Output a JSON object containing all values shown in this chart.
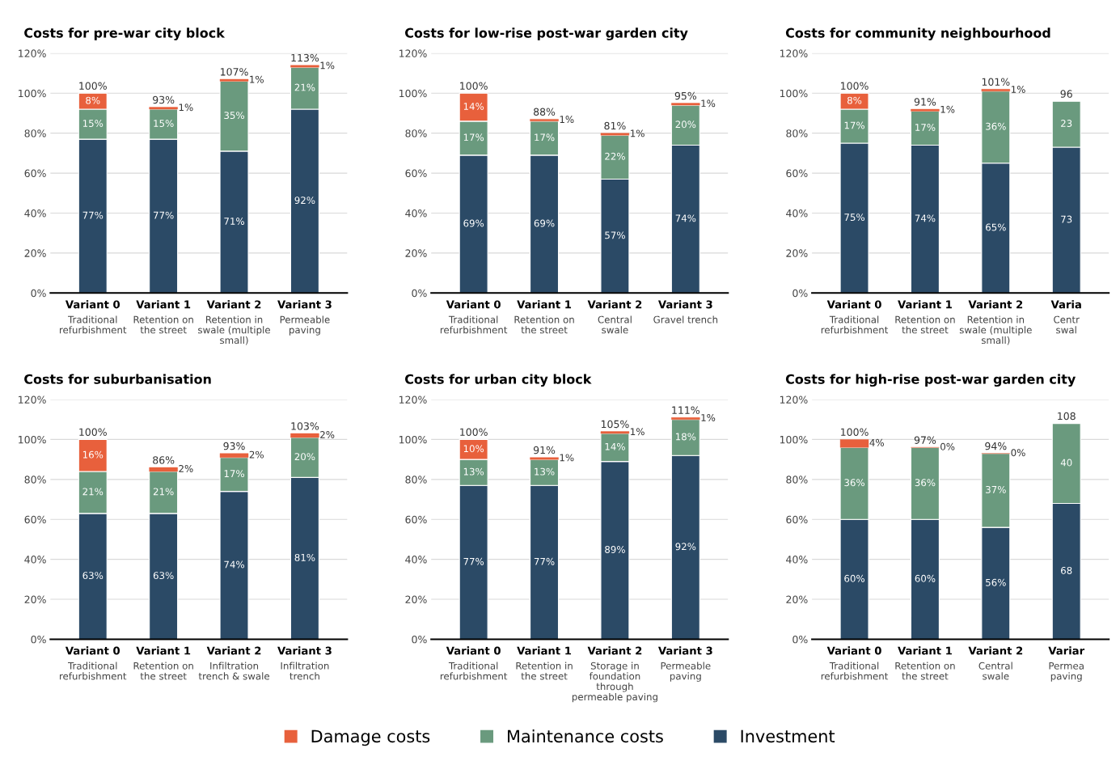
{
  "chart_data": [
    {
      "type": "bar",
      "stacked": true,
      "title": "Costs for pre-war city block",
      "categories": [
        "Variant 0\nTraditional\nrefurbishment",
        "Variant 1\nRetention on\nthe street",
        "Variant 2\nRetention in\nswale (multiple\nsmall)",
        "Variant 3\nPermeable\npaving"
      ],
      "ylim": [
        0,
        120
      ],
      "yticks": [
        {
          "value": 0,
          "label": "0%"
        },
        {
          "value": 20,
          "label": "20%"
        },
        {
          "value": 40,
          "label": "40%"
        },
        {
          "value": 60,
          "label": "60%"
        },
        {
          "value": 80,
          "label": "80%"
        },
        {
          "value": 100,
          "label": "100%"
        },
        {
          "value": 120,
          "label": "120%"
        }
      ],
      "grid": "y",
      "legend": "bottom",
      "series": [
        {
          "name": "Investment",
          "color": "#2b4a66",
          "values": [
            77,
            77,
            71,
            92
          ],
          "value_labels": [
            "77%",
            "77%",
            "71%",
            "92%"
          ]
        },
        {
          "name": "Maintenance costs",
          "color": "#6a9a7e",
          "values": [
            15,
            15,
            35,
            21
          ],
          "value_labels": [
            "15%",
            "15%",
            "35%",
            "21%"
          ]
        },
        {
          "name": "Damage costs",
          "color": "#e8603c",
          "values": [
            8,
            1,
            1,
            1
          ],
          "value_labels": [
            "8%",
            "1%",
            "1%",
            "1%"
          ]
        }
      ],
      "totals": [
        "100%",
        "93%",
        "107%",
        "113%"
      ]
    },
    {
      "type": "bar",
      "stacked": true,
      "title": "Costs for low-rise post-war garden city",
      "categories": [
        "Variant 0\nTraditional\nrefurbishment",
        "Variant 1\nRetention on\nthe street",
        "Variant 2\nCentral\nswale",
        "Variant 3\nGravel trench"
      ],
      "ylim": [
        0,
        120
      ],
      "yticks": [
        {
          "value": 0,
          "label": "0%"
        },
        {
          "value": 20,
          "label": "20%"
        },
        {
          "value": 40,
          "label": "40%"
        },
        {
          "value": 60,
          "label": "60%"
        },
        {
          "value": 80,
          "label": "80%"
        },
        {
          "value": 100,
          "label": "100%"
        },
        {
          "value": 120,
          "label": "120%"
        }
      ],
      "grid": "y",
      "series": [
        {
          "color": "#2b4a66",
          "values": [
            69,
            69,
            57,
            74
          ],
          "value_labels": [
            "69%",
            "69%",
            "57%",
            "74%"
          ]
        },
        {
          "color": "#6a9a7e",
          "values": [
            17,
            17,
            22,
            20
          ],
          "value_labels": [
            "17%",
            "17%",
            "22%",
            "20%"
          ]
        },
        {
          "color": "#e8603c",
          "values": [
            14,
            1,
            1,
            1
          ],
          "value_labels": [
            "14%",
            "1%",
            "1%",
            "1%"
          ]
        }
      ],
      "totals": [
        "100%",
        "88%",
        "81%",
        "95%"
      ]
    },
    {
      "type": "bar",
      "stacked": true,
      "title": "Costs for community neighbourhood",
      "categories": [
        "Variant 0\nTraditional\nrefurbishment",
        "Variant 1\nRetention on\nthe street",
        "Variant 2\nRetention in\nswale (multiple\nsmall)",
        "Varia\nCentr\nswal"
      ],
      "ylim": [
        0,
        120
      ],
      "yticks": [
        {
          "value": 0,
          "label": "0%"
        },
        {
          "value": 20,
          "label": "20%"
        },
        {
          "value": 40,
          "label": "40%"
        },
        {
          "value": 60,
          "label": "60%"
        },
        {
          "value": 80,
          "label": "80%"
        },
        {
          "value": 100,
          "label": "100%"
        },
        {
          "value": 120,
          "label": "120%"
        }
      ],
      "grid": "y",
      "series": [
        {
          "color": "#2b4a66",
          "values": [
            75,
            74,
            65,
            73
          ],
          "value_labels": [
            "75%",
            "74%",
            "65%",
            "73"
          ]
        },
        {
          "color": "#6a9a7e",
          "values": [
            17,
            17,
            36,
            23
          ],
          "value_labels": [
            "17%",
            "17%",
            "36%",
            "23"
          ]
        },
        {
          "color": "#e8603c",
          "values": [
            8,
            1,
            1,
            null
          ],
          "value_labels": [
            "8%",
            "1%",
            "1%",
            null
          ]
        }
      ],
      "totals": [
        "100%",
        "91%",
        "101%",
        "96"
      ]
    },
    {
      "type": "bar",
      "stacked": true,
      "title": "Costs for suburbanisation",
      "categories": [
        "Variant 0\nTraditional\nrefurbishment",
        "Variant 1\nRetention on\nthe street",
        "Variant 2\nInfiltration\ntrench & swale",
        "Variant 3\nInfiltration\ntrench"
      ],
      "ylim": [
        0,
        120
      ],
      "yticks": [
        {
          "value": 0,
          "label": "0%"
        },
        {
          "value": 20,
          "label": "20%"
        },
        {
          "value": 40,
          "label": "40%"
        },
        {
          "value": 60,
          "label": "60%"
        },
        {
          "value": 80,
          "label": "80%"
        },
        {
          "value": 100,
          "label": "100%"
        },
        {
          "value": 120,
          "label": "120%"
        }
      ],
      "grid": "y",
      "series": [
        {
          "color": "#2b4a66",
          "values": [
            63,
            63,
            74,
            81
          ],
          "value_labels": [
            "63%",
            "63%",
            "74%",
            "81%"
          ]
        },
        {
          "color": "#6a9a7e",
          "values": [
            21,
            21,
            17,
            20
          ],
          "value_labels": [
            "21%",
            "21%",
            "17%",
            "20%"
          ]
        },
        {
          "color": "#e8603c",
          "values": [
            16,
            2,
            2,
            2
          ],
          "value_labels": [
            "16%",
            "2%",
            "2%",
            "2%"
          ]
        }
      ],
      "totals": [
        "100%",
        "86%",
        "93%",
        "103%"
      ]
    },
    {
      "type": "bar",
      "stacked": true,
      "title": "Costs for urban city block",
      "categories": [
        "Variant 0\nTraditional\nrefurbishment",
        "Variant 1\nRetention in\nthe street",
        "Variant 2\nStorage in\nfoundation\nthrough\npermeable paving",
        "Variant 3\nPermeable\npaving"
      ],
      "ylim": [
        0,
        120
      ],
      "yticks": [
        {
          "value": 0,
          "label": "0%"
        },
        {
          "value": 20,
          "label": "20%"
        },
        {
          "value": 40,
          "label": "40%"
        },
        {
          "value": 60,
          "label": "60%"
        },
        {
          "value": 80,
          "label": "80%"
        },
        {
          "value": 100,
          "label": "100%"
        },
        {
          "value": 120,
          "label": "120%"
        }
      ],
      "grid": "y",
      "series": [
        {
          "color": "#2b4a66",
          "values": [
            77,
            77,
            89,
            92
          ],
          "value_labels": [
            "77%",
            "77%",
            "89%",
            "92%"
          ]
        },
        {
          "color": "#6a9a7e",
          "values": [
            13,
            13,
            14,
            18
          ],
          "value_labels": [
            "13%",
            "13%",
            "14%",
            "18%"
          ]
        },
        {
          "color": "#e8603c",
          "values": [
            10,
            1,
            1,
            1
          ],
          "value_labels": [
            "10%",
            "1%",
            "1%",
            "1%"
          ]
        }
      ],
      "totals": [
        "100%",
        "91%",
        "105%",
        "111%"
      ]
    },
    {
      "type": "bar",
      "stacked": true,
      "title": "Costs for high-rise post-war garden city",
      "categories": [
        "Variant 0\nTraditional\nrefurbishment",
        "Variant 1\nRetention on\nthe street",
        "Variant 2\nCentral\nswale",
        "Variar\nPermea\npaving"
      ],
      "ylim": [
        0,
        120
      ],
      "yticks": [
        {
          "value": 0,
          "label": "0%"
        },
        {
          "value": 20,
          "label": "20%"
        },
        {
          "value": 40,
          "label": "40%"
        },
        {
          "value": 60,
          "label": "60%"
        },
        {
          "value": 80,
          "label": "80%"
        },
        {
          "value": 100,
          "label": "100%"
        },
        {
          "value": 120,
          "label": "120%"
        }
      ],
      "grid": "y",
      "series": [
        {
          "color": "#2b4a66",
          "values": [
            60,
            60,
            56,
            68
          ],
          "value_labels": [
            "60%",
            "60%",
            "56%",
            "68"
          ]
        },
        {
          "color": "#6a9a7e",
          "values": [
            36,
            36,
            37,
            40
          ],
          "value_labels": [
            "36%",
            "36%",
            "37%",
            "40"
          ]
        },
        {
          "color": "#e8603c",
          "values": [
            4,
            0,
            0,
            null
          ],
          "value_labels": [
            "4%",
            "0%",
            "0%",
            null
          ]
        }
      ],
      "totals": [
        "100%",
        "97%",
        "94%",
        "108"
      ]
    }
  ]
}
